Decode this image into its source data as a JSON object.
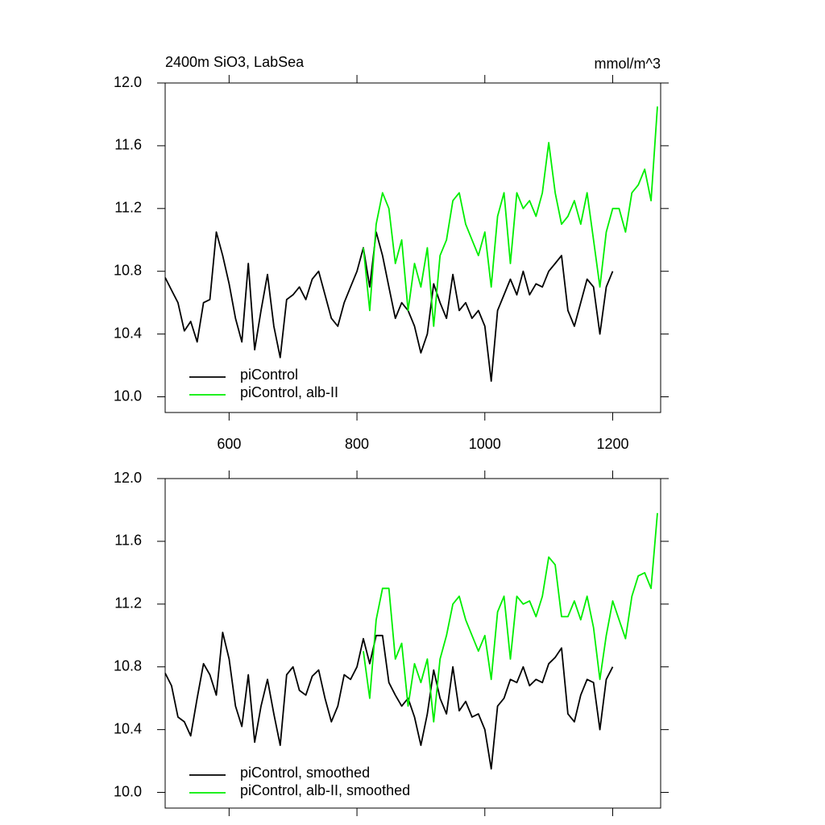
{
  "chart_data": [
    {
      "type": "line",
      "title": "2400m SiO3, LabSea",
      "y_units": "mmol/m^3",
      "xlim": [
        500,
        1275
      ],
      "xticks": [
        600,
        800,
        1000,
        1200
      ],
      "ylim": [
        9.9,
        12.0
      ],
      "yticks": [
        {
          "value": 10,
          "label": "10.0"
        },
        10.4,
        10.8,
        11.2,
        11.6,
        {
          "value": 12,
          "label": "12.0"
        }
      ],
      "series": [
        {
          "name": "piControl",
          "color": "#000000",
          "x": [
            500,
            510,
            520,
            530,
            540,
            550,
            560,
            570,
            580,
            590,
            600,
            610,
            620,
            630,
            640,
            650,
            660,
            670,
            680,
            690,
            700,
            710,
            720,
            730,
            740,
            750,
            760,
            770,
            780,
            790,
            800,
            810,
            820,
            830,
            840,
            850,
            860,
            870,
            880,
            890,
            900,
            910,
            920,
            930,
            940,
            950,
            960,
            970,
            980,
            990,
            1000,
            1010,
            1020,
            1030,
            1040,
            1050,
            1060,
            1070,
            1080,
            1090,
            1100,
            1110,
            1120,
            1130,
            1140,
            1150,
            1160,
            1170,
            1180,
            1190,
            1200
          ],
          "values": [
            10.76,
            10.68,
            10.6,
            10.42,
            10.48,
            10.35,
            10.6,
            10.62,
            11.05,
            10.9,
            10.72,
            10.5,
            10.35,
            10.85,
            10.3,
            10.55,
            10.78,
            10.45,
            10.25,
            10.62,
            10.65,
            10.7,
            10.62,
            10.75,
            10.8,
            10.65,
            10.5,
            10.45,
            10.6,
            10.7,
            10.8,
            10.95,
            10.7,
            11.05,
            10.9,
            10.7,
            10.5,
            10.6,
            10.55,
            10.45,
            10.28,
            10.4,
            10.72,
            10.6,
            10.5,
            10.78,
            10.55,
            10.6,
            10.5,
            10.55,
            10.45,
            10.1,
            10.55,
            10.65,
            10.75,
            10.65,
            10.8,
            10.65,
            10.72,
            10.7,
            10.8,
            10.85,
            10.9,
            10.55,
            10.45,
            10.6,
            10.75,
            10.7,
            10.4,
            10.7,
            10.8
          ]
        },
        {
          "name": "piControl, alb-II",
          "color": "#00ee00",
          "x": [
            810,
            820,
            830,
            840,
            850,
            860,
            870,
            880,
            890,
            900,
            910,
            920,
            930,
            940,
            950,
            960,
            970,
            980,
            990,
            1000,
            1010,
            1020,
            1030,
            1040,
            1050,
            1060,
            1070,
            1080,
            1090,
            1100,
            1110,
            1120,
            1130,
            1140,
            1150,
            1160,
            1170,
            1180,
            1190,
            1200,
            1210,
            1220,
            1230,
            1240,
            1250,
            1260,
            1270
          ],
          "values": [
            10.95,
            10.55,
            11.1,
            11.3,
            11.2,
            10.85,
            11.0,
            10.55,
            10.85,
            10.7,
            10.95,
            10.45,
            10.9,
            11.0,
            11.25,
            11.3,
            11.1,
            11.0,
            10.9,
            11.05,
            10.7,
            11.15,
            11.3,
            10.85,
            11.3,
            11.2,
            11.25,
            11.15,
            11.3,
            11.62,
            11.3,
            11.1,
            11.15,
            11.25,
            11.1,
            11.3,
            11.0,
            10.7,
            11.05,
            11.2,
            11.2,
            11.05,
            11.3,
            11.35,
            11.45,
            11.25,
            11.85
          ]
        }
      ]
    },
    {
      "type": "line",
      "xlim": [
        500,
        1275
      ],
      "xticks": [
        600,
        800,
        1000,
        1200
      ],
      "ylim": [
        9.9,
        12.0
      ],
      "yticks": [
        {
          "value": 10,
          "label": "10.0"
        },
        10.4,
        10.8,
        11.2,
        11.6,
        {
          "value": 12,
          "label": "12.0"
        }
      ],
      "series": [
        {
          "name": "piControl, smoothed",
          "color": "#000000",
          "x": [
            500,
            510,
            520,
            530,
            540,
            550,
            560,
            570,
            580,
            590,
            600,
            610,
            620,
            630,
            640,
            650,
            660,
            670,
            680,
            690,
            700,
            710,
            720,
            730,
            740,
            750,
            760,
            770,
            780,
            790,
            800,
            810,
            820,
            830,
            840,
            850,
            860,
            870,
            880,
            890,
            900,
            910,
            920,
            930,
            940,
            950,
            960,
            970,
            980,
            990,
            1000,
            1010,
            1020,
            1030,
            1040,
            1050,
            1060,
            1070,
            1080,
            1090,
            1100,
            1110,
            1120,
            1130,
            1140,
            1150,
            1160,
            1170,
            1180,
            1190,
            1200
          ],
          "values": [
            10.76,
            10.68,
            10.48,
            10.45,
            10.36,
            10.6,
            10.82,
            10.75,
            10.62,
            11.02,
            10.85,
            10.55,
            10.42,
            10.75,
            10.32,
            10.55,
            10.72,
            10.5,
            10.3,
            10.75,
            10.8,
            10.65,
            10.62,
            10.74,
            10.78,
            10.6,
            10.45,
            10.55,
            10.75,
            10.72,
            10.8,
            10.98,
            10.82,
            11.0,
            11.0,
            10.7,
            10.62,
            10.55,
            10.6,
            10.48,
            10.3,
            10.5,
            10.78,
            10.6,
            10.5,
            10.8,
            10.52,
            10.58,
            10.48,
            10.5,
            10.4,
            10.15,
            10.55,
            10.6,
            10.72,
            10.7,
            10.8,
            10.68,
            10.72,
            10.7,
            10.82,
            10.86,
            10.92,
            10.5,
            10.45,
            10.62,
            10.72,
            10.7,
            10.4,
            10.72,
            10.8
          ]
        },
        {
          "name": "piControl, alb-II, smoothed",
          "color": "#00ee00",
          "x": [
            810,
            820,
            830,
            840,
            850,
            860,
            870,
            880,
            890,
            900,
            910,
            920,
            930,
            940,
            950,
            960,
            970,
            980,
            990,
            1000,
            1010,
            1020,
            1030,
            1040,
            1050,
            1060,
            1070,
            1080,
            1090,
            1100,
            1110,
            1120,
            1130,
            1140,
            1150,
            1160,
            1170,
            1180,
            1190,
            1200,
            1210,
            1220,
            1230,
            1240,
            1250,
            1260,
            1270
          ],
          "values": [
            10.9,
            10.6,
            11.1,
            11.3,
            11.3,
            10.85,
            10.95,
            10.55,
            10.82,
            10.7,
            10.85,
            10.45,
            10.85,
            11.0,
            11.2,
            11.25,
            11.1,
            11.0,
            10.9,
            11.0,
            10.72,
            11.15,
            11.25,
            10.85,
            11.25,
            11.2,
            11.22,
            11.12,
            11.25,
            11.5,
            11.45,
            11.12,
            11.12,
            11.22,
            11.1,
            11.25,
            11.05,
            10.72,
            11.0,
            11.22,
            11.1,
            10.98,
            11.25,
            11.38,
            11.4,
            11.3,
            11.78
          ]
        }
      ]
    }
  ]
}
